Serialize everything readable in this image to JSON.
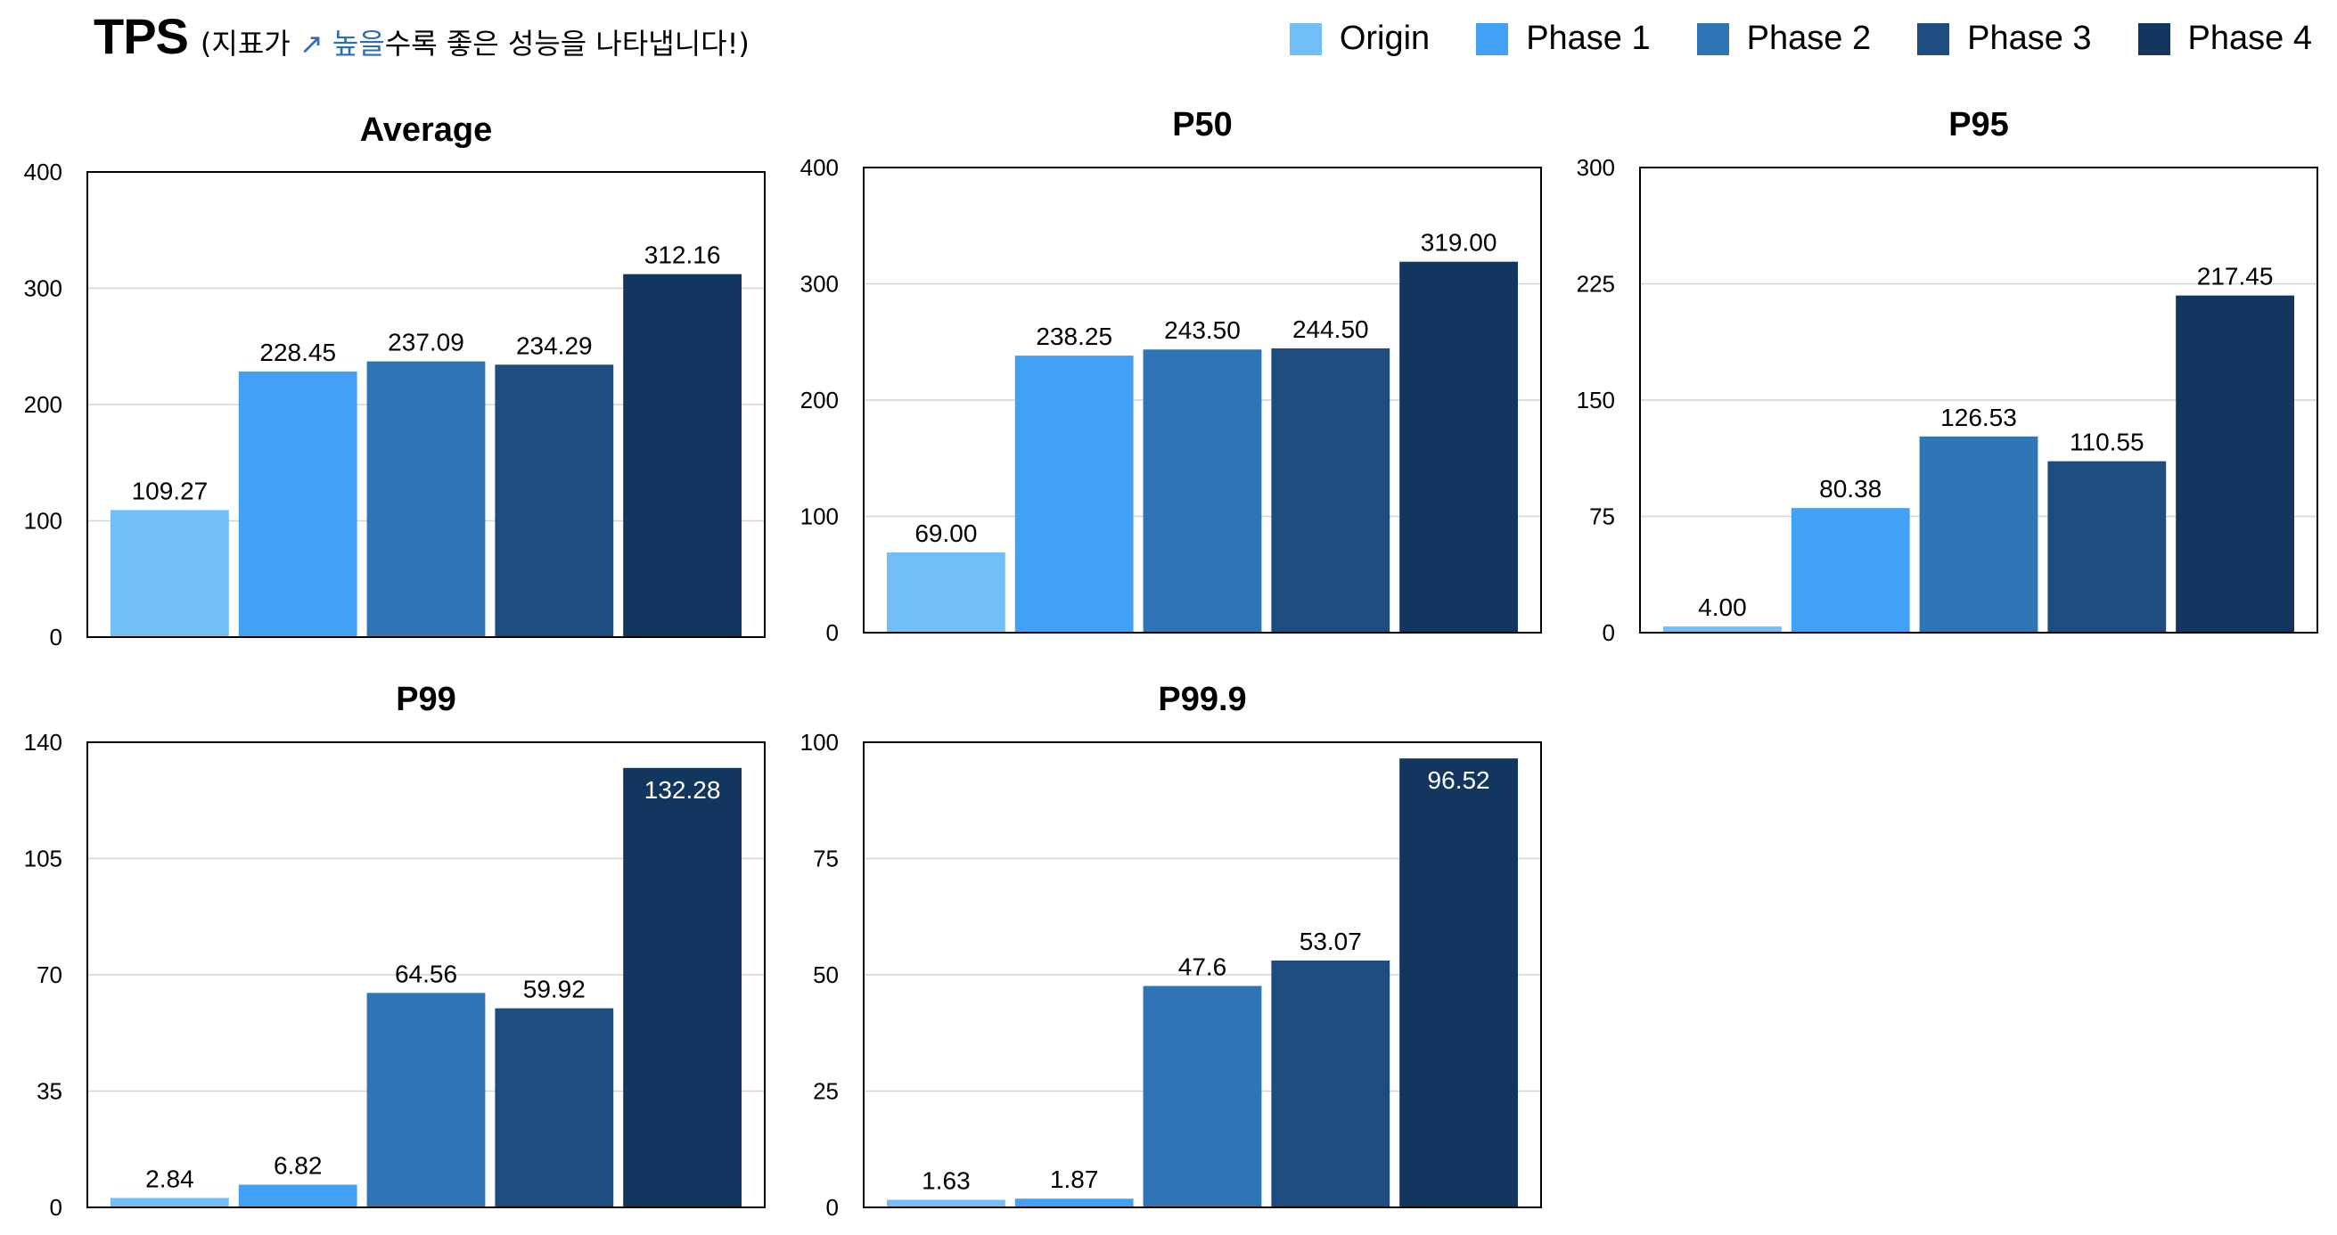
{
  "header": {
    "title": "TPS",
    "subtitle_prefix": "(지표가",
    "subtitle_arrow": "↗",
    "subtitle_highlight": "높을",
    "subtitle_suffix": "수록 좋은 성능을 나타냅니다!)"
  },
  "legend": [
    {
      "name": "Origin",
      "color": "#72bff8"
    },
    {
      "name": "Phase 1",
      "color": "#42a0f5"
    },
    {
      "name": "Phase 2",
      "color": "#2f75b5"
    },
    {
      "name": "Phase 3",
      "color": "#1f4c7e"
    },
    {
      "name": "Phase 4",
      "color": "#13365f"
    }
  ],
  "chart_data": [
    {
      "type": "bar",
      "title": "Average",
      "categories": [
        "Origin",
        "Phase 1",
        "Phase 2",
        "Phase 3",
        "Phase 4"
      ],
      "values": [
        109.27,
        228.45,
        237.09,
        234.29,
        312.16
      ],
      "labels": [
        "109.27",
        "228.45",
        "237.09",
        "234.29",
        "312.16"
      ],
      "ylim": [
        0,
        400
      ],
      "yticks": [
        "0",
        "100",
        "200",
        "300",
        "400"
      ],
      "grid": true
    },
    {
      "type": "bar",
      "title": "P50",
      "categories": [
        "Origin",
        "Phase 1",
        "Phase 2",
        "Phase 3",
        "Phase 4"
      ],
      "values": [
        69.0,
        238.25,
        243.5,
        244.5,
        319.0
      ],
      "labels": [
        "69.00",
        "238.25",
        "243.50",
        "244.50",
        "319.00"
      ],
      "ylim": [
        0,
        400
      ],
      "yticks": [
        "0",
        "100",
        "200",
        "300",
        "400"
      ],
      "grid": true
    },
    {
      "type": "bar",
      "title": "P95",
      "categories": [
        "Origin",
        "Phase 1",
        "Phase 2",
        "Phase 3",
        "Phase 4"
      ],
      "values": [
        4.0,
        80.38,
        126.53,
        110.55,
        217.45
      ],
      "labels": [
        "4.00",
        "80.38",
        "126.53",
        "110.55",
        "217.45"
      ],
      "ylim": [
        0,
        300
      ],
      "yticks": [
        "0",
        "75",
        "150",
        "225",
        "300"
      ],
      "grid": true
    },
    {
      "type": "bar",
      "title": "P99",
      "categories": [
        "Origin",
        "Phase 1",
        "Phase 2",
        "Phase 3",
        "Phase 4"
      ],
      "values": [
        2.84,
        6.82,
        64.56,
        59.92,
        132.28
      ],
      "labels": [
        "2.84",
        "6.82",
        "64.56",
        "59.92",
        "132.28"
      ],
      "ylim": [
        0,
        140
      ],
      "yticks": [
        "0",
        "35",
        "70",
        "105",
        "140"
      ],
      "grid": true
    },
    {
      "type": "bar",
      "title": "P99.9",
      "categories": [
        "Origin",
        "Phase 1",
        "Phase 2",
        "Phase 3",
        "Phase 4"
      ],
      "values": [
        1.63,
        1.87,
        47.6,
        53.07,
        96.52
      ],
      "labels": [
        "1.63",
        "1.87",
        "47.6",
        "53.07",
        "96.52"
      ],
      "ylim": [
        0,
        100
      ],
      "yticks": [
        "0",
        "25",
        "50",
        "75",
        "100"
      ],
      "grid": true
    }
  ]
}
